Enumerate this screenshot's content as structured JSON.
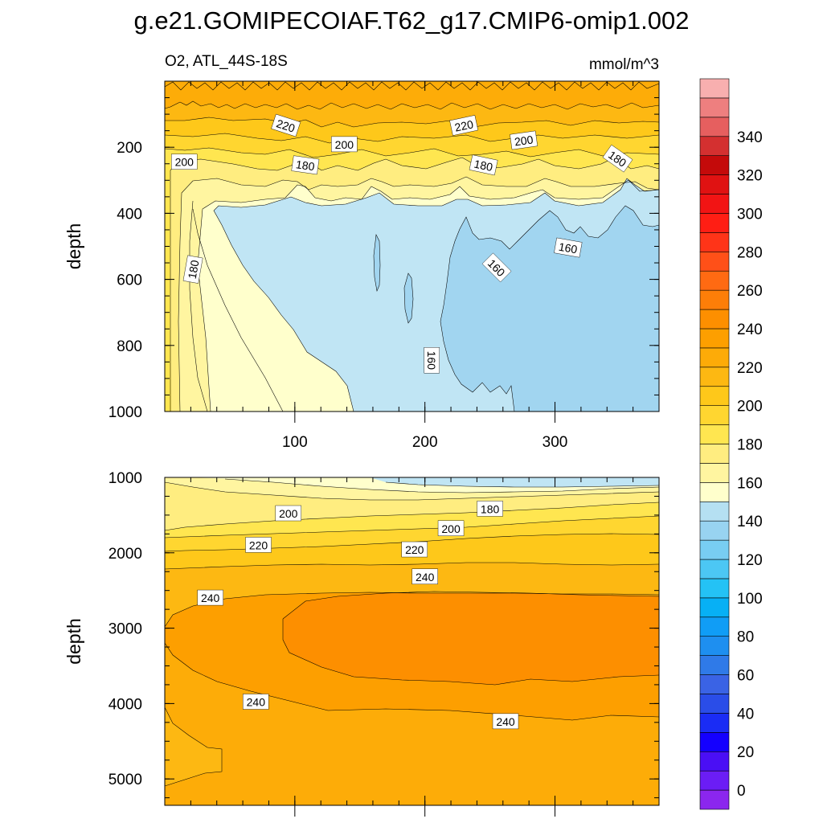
{
  "title": "g.e21.GOMIPECOIAF.T62_g17.CMIP6-omip1.002",
  "subtitle_left": "O2, ATL_44S-18S",
  "subtitle_right": "mmol/m^3",
  "chart_data": [
    {
      "type": "contour",
      "panel": "upper",
      "ylabel": "depth",
      "xlim": [
        0,
        380
      ],
      "ylim": [
        1000,
        0
      ],
      "xticks": [
        100,
        200,
        300
      ],
      "yticks": [
        200,
        400,
        600,
        800,
        1000
      ],
      "xminor_step": 20,
      "yminor_step": 50,
      "contour_labels": [
        {
          "text": "220",
          "x": 93,
          "y": 135,
          "angle": 18
        },
        {
          "text": "220",
          "x": 230,
          "y": 135,
          "angle": -12
        },
        {
          "text": "200",
          "x": 15,
          "y": 245,
          "angle": 0
        },
        {
          "text": "200",
          "x": 138,
          "y": 192,
          "angle": 0
        },
        {
          "text": "200",
          "x": 276,
          "y": 180,
          "angle": -8
        },
        {
          "text": "180",
          "x": 108,
          "y": 255,
          "angle": 8
        },
        {
          "text": "180",
          "x": 245,
          "y": 255,
          "angle": 12
        },
        {
          "text": "180",
          "x": 348,
          "y": 235,
          "angle": 35
        },
        {
          "text": "180",
          "x": 22,
          "y": 570,
          "angle": -80
        },
        {
          "text": "160",
          "x": 255,
          "y": 565,
          "angle": 45
        },
        {
          "text": "160",
          "x": 310,
          "y": 505,
          "angle": 10
        },
        {
          "text": "160",
          "x": 205,
          "y": 845,
          "angle": 90
        }
      ]
    },
    {
      "type": "contour",
      "panel": "lower",
      "ylabel": "depth",
      "xlim": [
        0,
        380
      ],
      "ylim": [
        5350,
        1000
      ],
      "yticks": [
        1000,
        2000,
        3000,
        4000,
        5000
      ],
      "xminor_step": 20,
      "yminor_step": 250,
      "contour_labels": [
        {
          "text": "200",
          "x": 95,
          "y": 1480,
          "angle": 0
        },
        {
          "text": "180",
          "x": 250,
          "y": 1420,
          "angle": 0
        },
        {
          "text": "200",
          "x": 220,
          "y": 1680,
          "angle": 0
        },
        {
          "text": "220",
          "x": 72,
          "y": 1900,
          "angle": 0
        },
        {
          "text": "220",
          "x": 192,
          "y": 1960,
          "angle": 0
        },
        {
          "text": "240",
          "x": 200,
          "y": 2320,
          "angle": 0
        },
        {
          "text": "240",
          "x": 35,
          "y": 2600,
          "angle": 0
        },
        {
          "text": "240",
          "x": 70,
          "y": 3980,
          "angle": 0
        },
        {
          "text": "240",
          "x": 262,
          "y": 4240,
          "angle": 0
        }
      ]
    }
  ],
  "colorbar": {
    "labels": [
      "0",
      "20",
      "40",
      "60",
      "80",
      "100",
      "120",
      "140",
      "160",
      "180",
      "200",
      "220",
      "240",
      "260",
      "280",
      "300",
      "320",
      "340"
    ],
    "colors": [
      "#8b26ee",
      "#6b1df5",
      "#4a0ff5",
      "#1400ff",
      "#1a2cf5",
      "#2a4de8",
      "#3a63e5",
      "#2f7ae8",
      "#1e8ff0",
      "#109df6",
      "#07b0f5",
      "#24c2f5",
      "#4cc7f4",
      "#78cdf2",
      "#98d3f1",
      "#b5e0f2",
      "#ffffcc",
      "#fff5a0",
      "#ffed80",
      "#ffe650",
      "#ffd630",
      "#fec81a",
      "#fdb812",
      "#fdab08",
      "#fd9f00",
      "#fd8f00",
      "#fd7e08",
      "#ff6a12",
      "#ff5018",
      "#ff3418",
      "#ff1e14",
      "#f21414",
      "#e01212",
      "#c40a0a",
      "#d43030",
      "#e65f5f",
      "#ee7f7f",
      "#f8afaf"
    ]
  }
}
